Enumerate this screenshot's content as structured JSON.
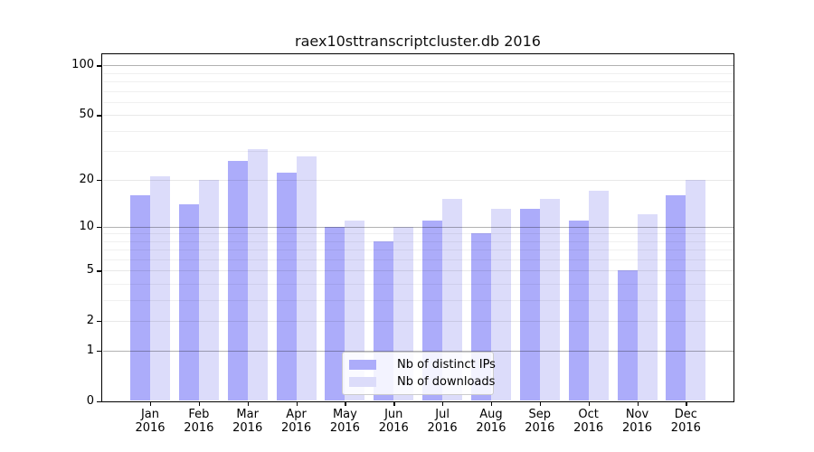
{
  "title": "raex10sttranscriptcluster.db 2016",
  "chart_data": {
    "type": "bar",
    "title": "raex10sttranscriptcluster.db 2016",
    "categories": [
      "Jan\n2016",
      "Feb\n2016",
      "Mar\n2016",
      "Apr\n2016",
      "May\n2016",
      "Jun\n2016",
      "Jul\n2016",
      "Aug\n2016",
      "Sep\n2016",
      "Oct\n2016",
      "Nov\n2016",
      "Dec\n2016"
    ],
    "series": [
      {
        "name": "Nb of distinct IPs",
        "color": "#acacfa",
        "values": [
          16,
          14,
          26,
          22,
          10,
          8,
          11,
          9,
          13,
          11,
          5,
          16
        ]
      },
      {
        "name": "Nb of downloads",
        "color": "#dcdcfa",
        "values": [
          21,
          20,
          31,
          28,
          11,
          10,
          15,
          13,
          15,
          17,
          12,
          20
        ]
      }
    ],
    "xlabel": "",
    "ylabel": "",
    "yscale": "log1p",
    "ylim": [
      0,
      117
    ],
    "yticks": [
      0,
      1,
      2,
      5,
      10,
      20,
      50,
      100
    ],
    "ytick_labels": [
      "0",
      "1",
      "2",
      "5",
      "10",
      "20",
      "50",
      "100"
    ],
    "minor_yticks": [
      3,
      4,
      6,
      7,
      8,
      9,
      30,
      40,
      60,
      70,
      80,
      90
    ],
    "grid": true,
    "legend_position": "lower center"
  }
}
